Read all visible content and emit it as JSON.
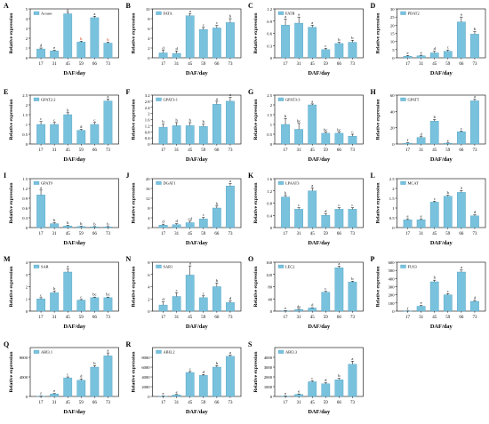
{
  "x_categories": [
    "17",
    "31",
    "45",
    "59",
    "66",
    "73"
  ],
  "xlabel": "DAF/day",
  "ylabel": "Relative expression",
  "colors": {
    "bar": "#79c2dd",
    "bar_stroke": "#4f9fc0",
    "legend_fill": "#79c2dd",
    "letter_sig": "#cc3300",
    "text": "#000000"
  },
  "chart_data": [
    {
      "type": "bar",
      "panel": "A",
      "name": "Acsase",
      "ylim": [
        0,
        5
      ],
      "yticks": [
        0,
        1,
        2,
        3,
        4,
        5
      ],
      "values": [
        0.9,
        0.7,
        4.5,
        1.6,
        4.1,
        1.5
      ],
      "errors": [
        0.1,
        0.08,
        0.15,
        0.1,
        0.15,
        0.1
      ],
      "letters": [
        "d",
        "e",
        "a",
        "b",
        "a",
        "b"
      ],
      "colored_letters": [
        false,
        false,
        false,
        true,
        false,
        true
      ]
    },
    {
      "type": "bar",
      "panel": "B",
      "name": "FATA",
      "ylim": [
        0,
        10
      ],
      "yticks": [
        0,
        2,
        4,
        6,
        8,
        10
      ],
      "values": [
        1.0,
        0.9,
        8.6,
        5.8,
        6.1,
        7.2
      ],
      "errors": [
        0.5,
        0.5,
        0.4,
        0.4,
        0.5,
        0.8
      ],
      "letters": [
        "d",
        "d",
        "a",
        "c",
        "c",
        "b"
      ]
    },
    {
      "type": "bar",
      "panel": "C",
      "name": "FATB",
      "ylim": [
        0,
        1.2
      ],
      "yticks": [
        0,
        0.3,
        0.6,
        0.9,
        1.2
      ],
      "values": [
        0.8,
        0.85,
        0.75,
        0.2,
        0.35,
        0.38
      ],
      "errors": [
        0.15,
        0.15,
        0.05,
        0.03,
        0.03,
        0.05
      ],
      "letters": [
        "a",
        "a",
        "a",
        "c",
        "b",
        "b"
      ]
    },
    {
      "type": "bar",
      "panel": "D",
      "name": "PDAT2",
      "ylim": [
        0,
        30
      ],
      "yticks": [
        0,
        5,
        10,
        15,
        20,
        25,
        30
      ],
      "values": [
        1.0,
        1.2,
        3.0,
        4.0,
        22.0,
        14.5
      ],
      "errors": [
        0.4,
        0.4,
        1.0,
        0.8,
        3.0,
        1.5
      ],
      "letters": [
        "e",
        "e",
        "d",
        "c",
        "a",
        "b"
      ]
    },
    {
      "type": "bar",
      "panel": "E",
      "name": "GPAT2-2",
      "ylim": [
        0,
        2.5
      ],
      "yticks": [
        0,
        0.5,
        1.0,
        1.5,
        2.0,
        2.5
      ],
      "values": [
        1.0,
        1.0,
        1.5,
        0.7,
        1.0,
        2.2
      ],
      "errors": [
        0.15,
        0.1,
        0.1,
        0.05,
        0.1,
        0.1
      ],
      "letters": [
        "c",
        "c",
        "b",
        "d",
        "c",
        "a"
      ]
    },
    {
      "type": "bar",
      "panel": "F",
      "name": "GPAT3-1",
      "ylim": [
        0,
        3.2
      ],
      "yticks": [
        0,
        0.4,
        0.8,
        1.2,
        1.6,
        2.0,
        2.4,
        2.8,
        3.2
      ],
      "values": [
        1.1,
        1.2,
        1.2,
        1.15,
        2.6,
        2.8
      ],
      "errors": [
        0.2,
        0.2,
        0.2,
        0.15,
        0.2,
        0.25
      ],
      "letters": [
        "b",
        "b",
        "b",
        "b",
        "a",
        "a"
      ]
    },
    {
      "type": "bar",
      "panel": "G",
      "name": "GPAT3-3",
      "ylim": [
        0,
        2.5
      ],
      "yticks": [
        0,
        0.5,
        1.0,
        1.5,
        2.0,
        2.5
      ],
      "values": [
        1.0,
        0.75,
        2.0,
        0.55,
        0.55,
        0.4
      ],
      "errors": [
        0.3,
        0.3,
        0.05,
        0.05,
        0.05,
        0.1
      ],
      "letters": [
        "b",
        "bc",
        "a",
        "bc",
        "bc",
        "c"
      ]
    },
    {
      "type": "bar",
      "panel": "H",
      "name": "GPAT5",
      "ylim": [
        0,
        60
      ],
      "yticks": [
        0,
        20,
        40,
        60
      ],
      "values": [
        1.0,
        8.0,
        28.0,
        1.0,
        15.0,
        53.0
      ],
      "errors": [
        0.5,
        1.0,
        2.0,
        0.3,
        1.0,
        2.0
      ],
      "letters": [
        "f",
        "d",
        "b",
        "e",
        "c",
        "a"
      ]
    },
    {
      "type": "bar",
      "panel": "I",
      "name": "GPAT9",
      "ylim": [
        0,
        1.5
      ],
      "yticks": [
        0,
        0.3,
        0.6,
        0.9,
        1.2,
        1.5
      ],
      "values": [
        1.0,
        0.12,
        0.05,
        0.03,
        0.02,
        0.02
      ],
      "errors": [
        0.15,
        0.03,
        0.02,
        0.01,
        0.01,
        0.01
      ],
      "letters": [
        "a",
        "b",
        "b",
        "b",
        "b",
        "b"
      ]
    },
    {
      "type": "bar",
      "panel": "J",
      "name": "DGAT1",
      "ylim": [
        0,
        20
      ],
      "yticks": [
        0,
        4,
        8,
        12,
        16,
        20
      ],
      "values": [
        1.0,
        1.2,
        2.0,
        3.5,
        8.0,
        17.0
      ],
      "errors": [
        0.4,
        0.4,
        0.6,
        0.6,
        0.8,
        1.0
      ],
      "letters": [
        "d",
        "d",
        "cd",
        "c",
        "b",
        "a"
      ]
    },
    {
      "type": "bar",
      "panel": "K",
      "name": "LPAAT3",
      "ylim": [
        0,
        1.6
      ],
      "yticks": [
        0,
        0.4,
        0.8,
        1.2,
        1.6
      ],
      "values": [
        1.0,
        0.6,
        1.2,
        0.4,
        0.6,
        0.6
      ],
      "errors": [
        0.05,
        0.05,
        0.1,
        0.05,
        0.05,
        0.05
      ],
      "letters": [
        "b",
        "c",
        "a",
        "d",
        "c",
        "c"
      ]
    },
    {
      "type": "bar",
      "panel": "L",
      "name": "MCAT",
      "ylim": [
        0,
        2.5
      ],
      "yticks": [
        0,
        0.5,
        1.0,
        1.5,
        2.0,
        2.5
      ],
      "values": [
        0.4,
        0.4,
        1.3,
        1.6,
        1.8,
        0.6
      ],
      "errors": [
        0.05,
        0.05,
        0.05,
        0.05,
        0.1,
        0.05
      ],
      "letters": [
        "e",
        "e",
        "c",
        "b",
        "a",
        "d"
      ]
    },
    {
      "type": "bar",
      "panel": "M",
      "name": "SAR",
      "ylim": [
        0,
        4
      ],
      "yticks": [
        0,
        1,
        2,
        3,
        4
      ],
      "values": [
        1.0,
        1.5,
        3.2,
        0.9,
        1.1,
        1.1
      ],
      "errors": [
        0.1,
        0.15,
        0.25,
        0.05,
        0.05,
        0.05
      ],
      "letters": [
        "c",
        "b",
        "a",
        "c",
        "bc",
        "bc"
      ]
    },
    {
      "type": "bar",
      "panel": "N",
      "name": "SAR1",
      "ylim": [
        0,
        8
      ],
      "yticks": [
        0,
        2,
        4,
        6,
        8
      ],
      "values": [
        1.0,
        2.4,
        5.9,
        2.2,
        4.0,
        1.4
      ],
      "errors": [
        0.5,
        0.6,
        1.5,
        0.3,
        0.6,
        0.3
      ],
      "letters": [
        "d",
        "c",
        "a",
        "c",
        "b",
        "d"
      ]
    },
    {
      "type": "bar",
      "panel": "O",
      "name": "LEC2",
      "ylim": [
        0,
        160
      ],
      "yticks": [
        0,
        40,
        80,
        120,
        160
      ],
      "values": [
        1.0,
        5.0,
        10.0,
        62.0,
        142.0,
        95.0
      ],
      "errors": [
        0.5,
        1.0,
        1.0,
        3.0,
        5.0,
        3.0
      ],
      "letters": [
        "e",
        "de",
        "d",
        "c",
        "a",
        "b"
      ]
    },
    {
      "type": "bar",
      "panel": "P",
      "name": "FUS3",
      "ylim": [
        0,
        600
      ],
      "yticks": [
        0,
        100,
        200,
        300,
        400,
        500,
        600
      ],
      "values": [
        1.0,
        60.0,
        360.0,
        200.0,
        480.0,
        120.0
      ],
      "errors": [
        0.5,
        10.0,
        20.0,
        15.0,
        25.0,
        10.0
      ],
      "letters": [
        "f",
        "e",
        "b",
        "c",
        "a",
        "d"
      ]
    },
    {
      "type": "bar",
      "panel": "Q",
      "name": "ABI3.1",
      "ylim": [
        0,
        10000
      ],
      "yticks": [
        0,
        4000,
        8000
      ],
      "values": [
        50,
        500,
        3800,
        3300,
        6000,
        8300
      ],
      "errors": [
        30,
        100,
        200,
        300,
        300,
        600
      ],
      "letters": [
        "f",
        "e",
        "c",
        "d",
        "b",
        "a"
      ]
    },
    {
      "type": "bar",
      "panel": "R",
      "name": "ABI3.2",
      "ylim": [
        0,
        10000
      ],
      "yticks": [
        0,
        2000,
        4000,
        6000,
        8000
      ],
      "values": [
        50,
        300,
        4900,
        4300,
        6000,
        8200
      ],
      "errors": [
        30,
        100,
        200,
        200,
        300,
        300
      ],
      "letters": [
        "e",
        "e",
        "c",
        "d",
        "b",
        "a"
      ]
    },
    {
      "type": "bar",
      "panel": "S",
      "name": "ABI3.3",
      "ylim": [
        0,
        5000
      ],
      "yticks": [
        0,
        1000,
        2000,
        3000,
        4000
      ],
      "values": [
        30,
        200,
        1500,
        1300,
        1700,
        3300
      ],
      "errors": [
        20,
        60,
        100,
        100,
        150,
        300
      ],
      "letters": [
        "e",
        "e",
        "c",
        "d",
        "b",
        "a"
      ]
    }
  ]
}
